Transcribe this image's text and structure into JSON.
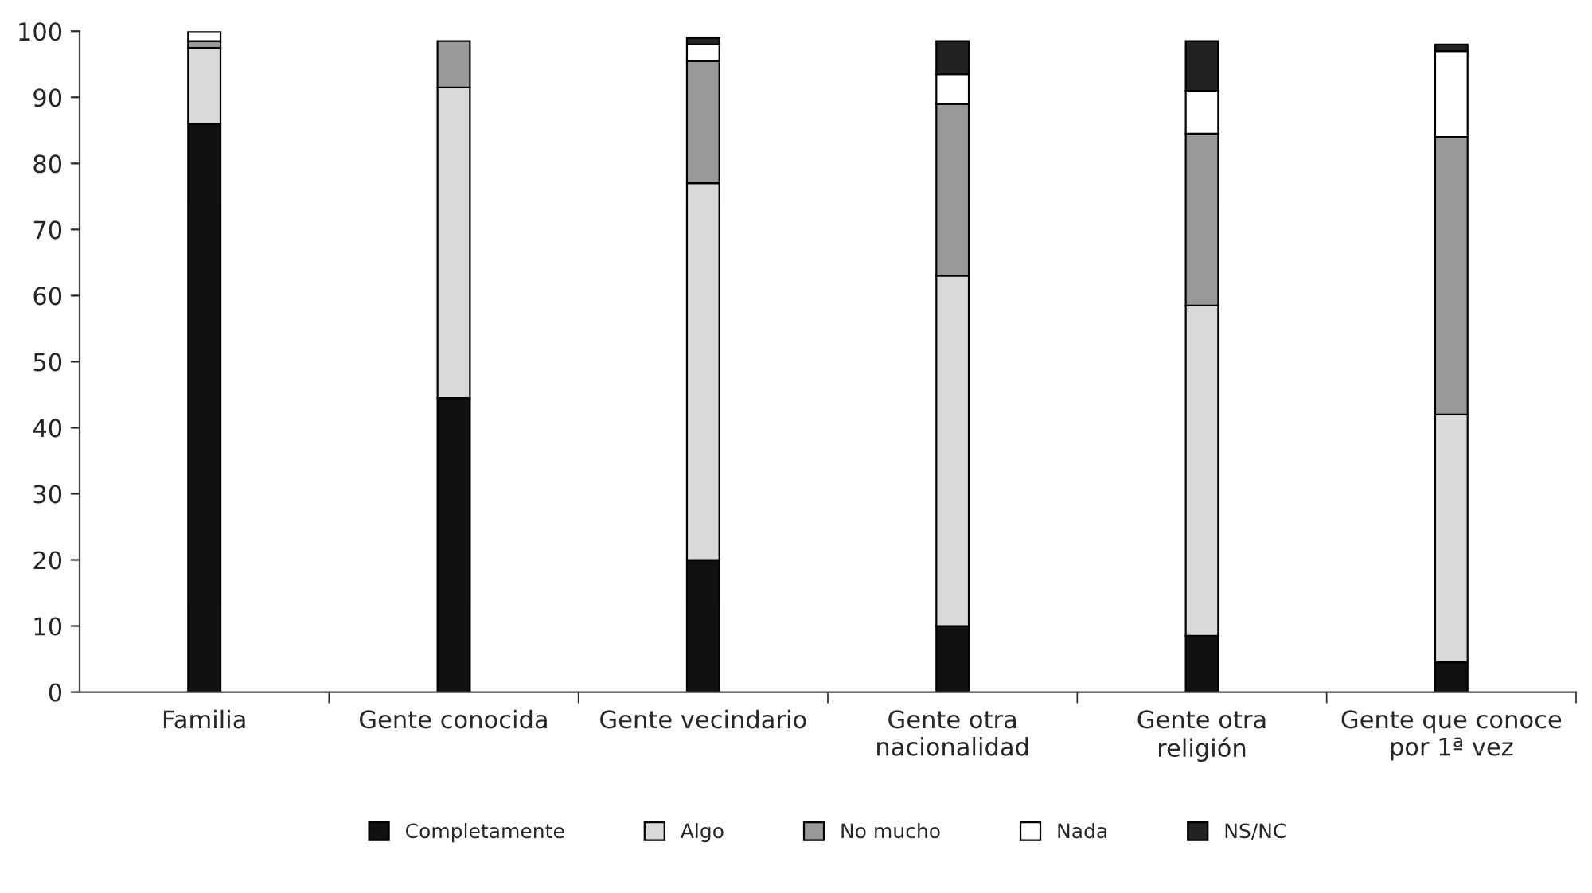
{
  "chart_data": {
    "type": "bar",
    "stacked": true,
    "categories": [
      "Familia",
      "Gente conocida",
      "Gente vecindario",
      "Gente otra\nnacionalidad",
      "Gente otra\nreligión",
      "Gente que conoce\npor 1ª vez"
    ],
    "series": [
      {
        "name": "Completamente",
        "color": "#111111",
        "values": [
          86,
          44.5,
          20,
          10,
          8.5,
          4.5
        ]
      },
      {
        "name": "Algo",
        "color": "#d9d9d9",
        "values": [
          11.5,
          47,
          57,
          53,
          50,
          37.5
        ]
      },
      {
        "name": "No mucho",
        "color": "#999999",
        "values": [
          1,
          7,
          18.5,
          26,
          26,
          42
        ]
      },
      {
        "name": "Nada",
        "color": "#ffffff",
        "values": [
          1.5,
          null,
          2.5,
          4.5,
          6.5,
          13
        ]
      },
      {
        "name": "NS/NC",
        "color": "#222222",
        "values": [
          null,
          null,
          1,
          5,
          7.5,
          1
        ]
      }
    ],
    "ylim": [
      0,
      100
    ],
    "yticks": [
      0,
      10,
      20,
      30,
      40,
      50,
      60,
      70,
      80,
      90,
      100
    ],
    "grid": false,
    "legend": "bottom"
  }
}
